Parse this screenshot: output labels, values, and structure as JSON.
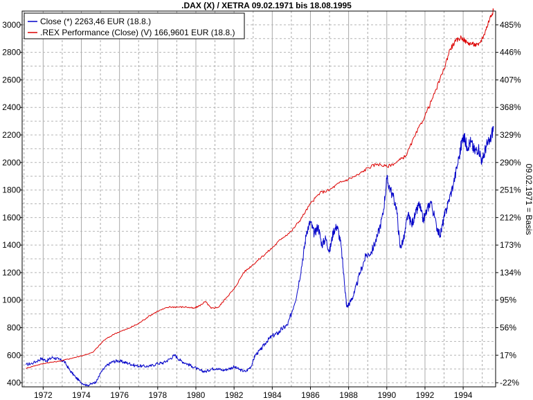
{
  "chart_data": {
    "type": "line",
    "title": ".DAX (X) / XETRA 09.02.1971 bis 18.08.1995",
    "ylabel_right": "09.02.1971 = Basis",
    "grid": true,
    "legend_position": "top-left",
    "xlim": [
      1970.9,
      1995.7
    ],
    "ylim": [
      370,
      3100
    ],
    "x_ticks": [
      1972,
      1974,
      1976,
      1978,
      1980,
      1982,
      1984,
      1986,
      1988,
      1990,
      1992,
      1994
    ],
    "x_tick_labels": [
      "1972",
      "1974",
      "1976",
      "1978",
      "1980",
      "1982",
      "1984",
      "1986",
      "1988",
      "1990",
      "1992",
      "1994"
    ],
    "y_ticks_left": [
      400,
      600,
      800,
      1000,
      1200,
      1400,
      1600,
      1800,
      2000,
      2200,
      2400,
      2600,
      2800,
      3000
    ],
    "y_tick_labels_left": [
      "400",
      "600",
      "800",
      "1000",
      "1200",
      "1400",
      "1600",
      "1800",
      "2000",
      "2200",
      "2400",
      "2600",
      "2800",
      "3000"
    ],
    "y_ticks_right": [
      400,
      600,
      800,
      1000,
      1200,
      1400,
      1600,
      1800,
      2000,
      2200,
      2400,
      2600,
      2800,
      3000
    ],
    "y_tick_labels_right": [
      "-22%",
      "17%",
      "56%",
      "95%",
      "134%",
      "173%",
      "212%",
      "251%",
      "290%",
      "329%",
      "368%",
      "407%",
      "446%",
      "485%"
    ],
    "series": [
      {
        "name": "Close (*) 2263,46 EUR (18.8.)",
        "color": "#0000c8",
        "x": [
          1971.1,
          1971.5,
          1971.9,
          1972.2,
          1972.5,
          1972.8,
          1973.1,
          1973.4,
          1973.7,
          1974.0,
          1974.3,
          1974.6,
          1974.8,
          1975.0,
          1975.3,
          1975.6,
          1975.9,
          1976.2,
          1976.5,
          1976.8,
          1977.2,
          1977.6,
          1978.0,
          1978.3,
          1978.6,
          1978.9,
          1979.2,
          1979.5,
          1979.8,
          1980.2,
          1980.5,
          1980.8,
          1981.1,
          1981.4,
          1981.7,
          1982.0,
          1982.3,
          1982.6,
          1982.9,
          1983.1,
          1983.4,
          1983.7,
          1984.0,
          1984.3,
          1984.5,
          1984.8,
          1985.0,
          1985.3,
          1985.6,
          1985.8,
          1986.0,
          1986.2,
          1986.4,
          1986.6,
          1986.8,
          1987.0,
          1987.2,
          1987.4,
          1987.6,
          1987.8,
          1987.9,
          1988.1,
          1988.3,
          1988.6,
          1988.9,
          1989.2,
          1989.5,
          1989.8,
          1990.0,
          1990.2,
          1990.5,
          1990.7,
          1990.9,
          1991.1,
          1991.3,
          1991.5,
          1991.7,
          1991.9,
          1992.1,
          1992.3,
          1992.6,
          1992.8,
          1993.0,
          1993.2,
          1993.5,
          1993.8,
          1994.0,
          1994.2,
          1994.4,
          1994.6,
          1994.8,
          1995.0,
          1995.2,
          1995.4,
          1995.6
        ],
        "values": [
          530,
          545,
          575,
          560,
          585,
          570,
          555,
          490,
          440,
          400,
          380,
          395,
          410,
          470,
          520,
          550,
          560,
          550,
          540,
          525,
          520,
          520,
          540,
          545,
          570,
          600,
          560,
          540,
          520,
          490,
          480,
          500,
          505,
          490,
          500,
          515,
          495,
          480,
          520,
          600,
          640,
          700,
          740,
          760,
          790,
          820,
          900,
          1050,
          1300,
          1500,
          1570,
          1480,
          1540,
          1400,
          1450,
          1350,
          1500,
          1540,
          1400,
          1100,
          950,
          990,
          1050,
          1200,
          1320,
          1350,
          1460,
          1620,
          1880,
          1800,
          1680,
          1380,
          1450,
          1620,
          1550,
          1620,
          1700,
          1580,
          1650,
          1720,
          1540,
          1470,
          1600,
          1700,
          1850,
          2050,
          2200,
          2120,
          2150,
          2080,
          2110,
          2000,
          2120,
          2150,
          2263
        ]
      },
      {
        "name": ".REX Performance (Close) (V) 166,9601 EUR (18.8.)",
        "color": "#dc0000",
        "x": [
          1971.1,
          1971.6,
          1972.2,
          1972.8,
          1973.4,
          1974.0,
          1974.6,
          1975.2,
          1975.8,
          1976.4,
          1977.0,
          1977.5,
          1978.0,
          1978.6,
          1979.0,
          1979.5,
          1979.9,
          1980.2,
          1980.5,
          1980.8,
          1981.2,
          1981.6,
          1982.0,
          1982.5,
          1983.0,
          1983.5,
          1984.0,
          1984.5,
          1985.0,
          1985.5,
          1986.0,
          1986.5,
          1987.0,
          1987.5,
          1988.0,
          1988.5,
          1989.0,
          1989.5,
          1990.0,
          1990.5,
          1991.0,
          1991.5,
          1992.0,
          1992.5,
          1993.0,
          1993.3,
          1993.6,
          1993.9,
          1994.2,
          1994.5,
          1994.8,
          1995.1,
          1995.4,
          1995.6
        ],
        "values": [
          505,
          525,
          545,
          555,
          575,
          595,
          620,
          710,
          760,
          790,
          830,
          880,
          920,
          950,
          950,
          950,
          940,
          960,
          990,
          940,
          950,
          1020,
          1080,
          1200,
          1260,
          1320,
          1380,
          1450,
          1500,
          1590,
          1700,
          1780,
          1800,
          1850,
          1880,
          1910,
          1960,
          1990,
          1970,
          2000,
          2050,
          2200,
          2340,
          2500,
          2680,
          2820,
          2880,
          2910,
          2870,
          2860,
          2850,
          2930,
          3050,
          3110
        ]
      }
    ]
  }
}
